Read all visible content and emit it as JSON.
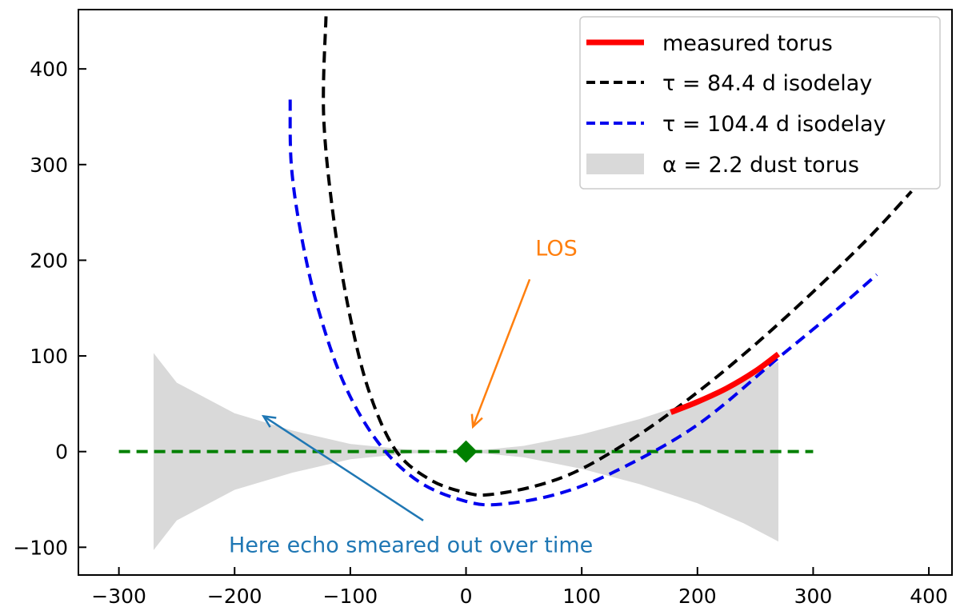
{
  "chart_data": {
    "type": "line",
    "xlim": [
      -335,
      420
    ],
    "ylim": [
      -129,
      462
    ],
    "xticks": [
      -300,
      -200,
      -100,
      0,
      100,
      200,
      300,
      400
    ],
    "yticks": [
      -100,
      0,
      100,
      200,
      300,
      400
    ],
    "xtick_labels": [
      "−300",
      "−200",
      "−100",
      "0",
      "100",
      "200",
      "300",
      "400"
    ],
    "ytick_labels": [
      "−100",
      "0",
      "100",
      "200",
      "300",
      "400"
    ],
    "series": [
      {
        "name": "measured torus",
        "legend_label": "measured torus",
        "color": "#ff0000",
        "style": "solid",
        "points": [
          [
            177,
            41
          ],
          [
            200,
            52
          ],
          [
            225,
            66
          ],
          [
            250,
            84
          ],
          [
            270,
            102
          ]
        ]
      },
      {
        "name": "isodelay 84.4 d",
        "legend_prefix": "τ = 84.4 d isodelay",
        "tau_days": 84.4,
        "color": "#000000",
        "style": "dashed",
        "points": [
          [
            -121,
            455
          ],
          [
            -123,
            350
          ],
          [
            -114,
            240
          ],
          [
            -100,
            140
          ],
          [
            -83,
            60
          ],
          [
            -60,
            0
          ],
          [
            -30,
            -30
          ],
          [
            0,
            -43
          ],
          [
            20,
            -45
          ],
          [
            60,
            -36
          ],
          [
            100,
            -18
          ],
          [
            150,
            18
          ],
          [
            200,
            62
          ],
          [
            250,
            112
          ],
          [
            300,
            167
          ],
          [
            350,
            226
          ],
          [
            385,
            272
          ]
        ]
      },
      {
        "name": "isodelay 104.4 d",
        "legend_prefix": "τ = 104.4 d isodelay",
        "tau_days": 104.4,
        "color": "#0000ee",
        "style": "dashed",
        "points": [
          [
            -152,
            368
          ],
          [
            -151,
            300
          ],
          [
            -143,
            230
          ],
          [
            -128,
            150
          ],
          [
            -105,
            70
          ],
          [
            -75,
            8
          ],
          [
            -40,
            -32
          ],
          [
            0,
            -52
          ],
          [
            30,
            -55
          ],
          [
            80,
            -44
          ],
          [
            130,
            -20
          ],
          [
            200,
            28
          ],
          [
            270,
            98
          ],
          [
            320,
            148
          ],
          [
            355,
            185
          ]
        ]
      }
    ],
    "torus": {
      "legend_label": "α = 2.2 dust torus",
      "alpha": 2.2,
      "color": "#d9d9d9",
      "upper": [
        [
          -270,
          103
        ],
        [
          -250,
          72
        ],
        [
          -200,
          40
        ],
        [
          -150,
          22
        ],
        [
          -100,
          8
        ],
        [
          -50,
          2
        ],
        [
          0,
          0
        ],
        [
          50,
          6
        ],
        [
          100,
          18
        ],
        [
          150,
          34
        ],
        [
          200,
          54
        ],
        [
          240,
          75
        ],
        [
          270,
          94
        ]
      ],
      "lower": [
        [
          -270,
          -103
        ],
        [
          -250,
          -72
        ],
        [
          -200,
          -40
        ],
        [
          -150,
          -22
        ],
        [
          -100,
          -8
        ],
        [
          -50,
          -2
        ],
        [
          0,
          0
        ],
        [
          50,
          -6
        ],
        [
          100,
          -18
        ],
        [
          150,
          -34
        ],
        [
          200,
          -54
        ],
        [
          240,
          -75
        ],
        [
          270,
          -94
        ]
      ]
    },
    "line_of_sight": {
      "color": "#008000",
      "x_range": [
        -300,
        300
      ],
      "y": 0
    },
    "source_marker": {
      "x": 0,
      "y": 0,
      "shape": "diamond",
      "color": "#008000"
    },
    "annotations": [
      {
        "text": "LOS",
        "color": "#ff7f0e",
        "text_at": [
          60,
          205
        ],
        "arrow_from": [
          55,
          180
        ],
        "arrow_to": [
          6,
          26
        ]
      },
      {
        "text": "Here echo smeared out over time",
        "color": "#1f77b4",
        "text_at": [
          -205,
          -105
        ],
        "arrow_from": [
          -37,
          -72
        ],
        "arrow_to": [
          -175,
          37
        ]
      }
    ],
    "legend": {
      "placement": "upper right",
      "entries": [
        "measured torus",
        "τ = 84.4 d isodelay",
        "τ = 104.4 d isodelay",
        "α = 2.2 dust torus"
      ]
    },
    "title": "",
    "xlabel": "",
    "ylabel": ""
  }
}
